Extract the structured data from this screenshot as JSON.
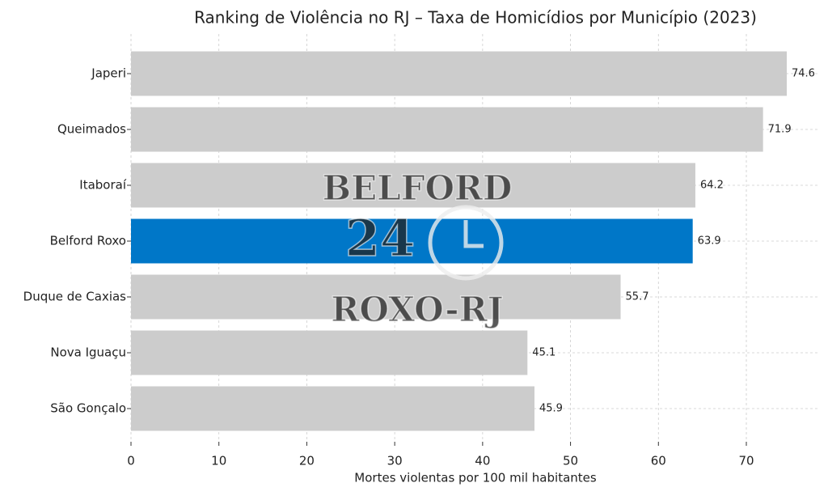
{
  "chart_data": {
    "type": "barh",
    "title": "Ranking de Violência no RJ – Taxa de Homicídios por Município (2023)",
    "xlabel": "Mortes violentas por 100 mil habitantes",
    "categories": [
      "Japeri",
      "Queimados",
      "Itaboraí",
      "Belford Roxo",
      "Duque de Caxias",
      "Nova Iguaçu",
      "São Gonçalo"
    ],
    "values": [
      74.6,
      71.9,
      64.2,
      63.9,
      55.7,
      45.1,
      45.9
    ],
    "colors": [
      "#cccccc",
      "#cccccc",
      "#cccccc",
      "#0077c8",
      "#cccccc",
      "#cccccc",
      "#cccccc"
    ],
    "xlim": [
      0,
      78.3
    ],
    "xticks": [
      0,
      10,
      20,
      30,
      40,
      50,
      60,
      70
    ],
    "grid": true,
    "watermark": [
      "BELFORD",
      "24",
      "ROXO-RJ"
    ]
  }
}
